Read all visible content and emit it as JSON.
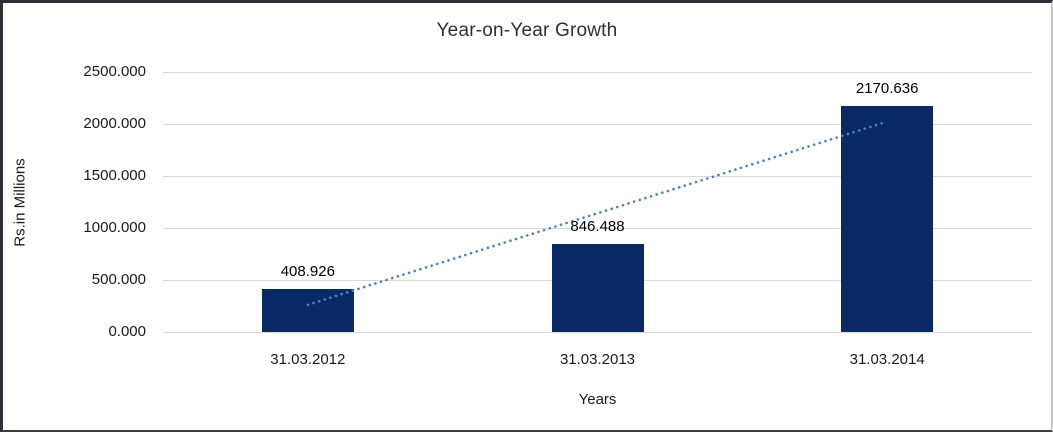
{
  "colors": {
    "bar_fill": "#0a2a66",
    "trendline": "#4f81bd",
    "gridline": "#d9d9d9",
    "text": "#1a1a1a",
    "background": "#ffffff"
  },
  "chart_data": {
    "type": "bar",
    "title": "Year-on-Year Growth",
    "xlabel": "Years",
    "ylabel": "Rs.in Millions",
    "categories": [
      "31.03.2012",
      "31.03.2013",
      "31.03.2014"
    ],
    "series": [
      {
        "name": "Rs.in Millions",
        "values": [
          408.926,
          846.488,
          2170.636
        ],
        "data_labels": [
          "408.926",
          "846.488",
          "2170.636"
        ]
      }
    ],
    "ylim": [
      0,
      2500
    ],
    "yticks": [
      0,
      500,
      1000,
      1500,
      2000,
      2500
    ],
    "ytick_labels": [
      "0.000",
      "500.000",
      "1000.000",
      "1500.000",
      "2000.000",
      "2500.000"
    ],
    "grid": true,
    "legend": "none",
    "trendline": {
      "type": "linear",
      "style": "dotted"
    }
  }
}
